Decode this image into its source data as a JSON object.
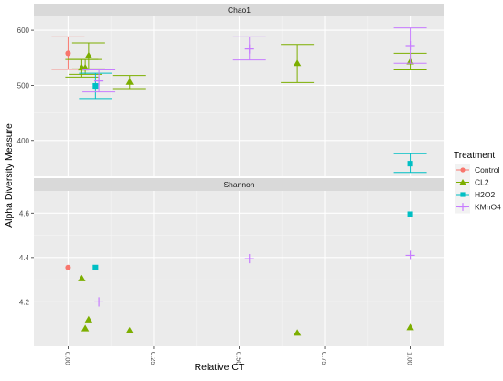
{
  "chart_data": {
    "type": "scatter",
    "xlabel": "Relative CT",
    "ylabel": "Alpha Diversity Measure",
    "x_ticks": [
      "0.00",
      "0.25",
      "0.50",
      "0.75",
      "1.00"
    ],
    "x_range": [
      -0.1,
      1.1
    ],
    "legend": {
      "title": "Treatment",
      "position": "right",
      "items": [
        {
          "name": "Control",
          "color": "#F8766D",
          "shape": "circle"
        },
        {
          "name": "CL2",
          "color": "#7CAE00",
          "shape": "triangle"
        },
        {
          "name": "H2O2",
          "color": "#00BFC4",
          "shape": "square"
        },
        {
          "name": "KMnO4",
          "color": "#C77CFF",
          "shape": "plus"
        }
      ]
    },
    "panels": [
      {
        "title": "Chao1",
        "ylim": [
          335,
          625
        ],
        "y_ticks": [
          400,
          500,
          600
        ],
        "points": [
          {
            "series": "Control",
            "x": 0.0,
            "y": 558,
            "ymin": 529,
            "ymax": 588
          },
          {
            "series": "CL2",
            "x": 0.04,
            "y": 532,
            "ymin": 515,
            "ymax": 547
          },
          {
            "series": "CL2",
            "x": 0.05,
            "y": 532,
            "ymin": 520,
            "ymax": 547
          },
          {
            "series": "CL2",
            "x": 0.06,
            "y": 554,
            "ymin": 530,
            "ymax": 577
          },
          {
            "series": "H2O2",
            "x": 0.08,
            "y": 499,
            "ymin": 476,
            "ymax": 522
          },
          {
            "series": "KMnO4",
            "x": 0.09,
            "y": 508,
            "ymin": 488,
            "ymax": 528
          },
          {
            "series": "CL2",
            "x": 0.18,
            "y": 506,
            "ymin": 494,
            "ymax": 518
          },
          {
            "series": "KMnO4",
            "x": 0.53,
            "y": 566,
            "ymin": 546,
            "ymax": 588
          },
          {
            "series": "CL2",
            "x": 0.67,
            "y": 540,
            "ymin": 505,
            "ymax": 574
          },
          {
            "series": "H2O2",
            "x": 1.0,
            "y": 358,
            "ymin": 342,
            "ymax": 376
          },
          {
            "series": "CL2",
            "x": 1.0,
            "y": 543,
            "ymin": 528,
            "ymax": 558
          },
          {
            "series": "KMnO4",
            "x": 1.0,
            "y": 572,
            "ymin": 540,
            "ymax": 604
          }
        ]
      },
      {
        "title": "Shannon",
        "ylim": [
          4.0,
          4.7
        ],
        "y_ticks": [
          4.2,
          4.4,
          4.6
        ],
        "points": [
          {
            "series": "Control",
            "x": 0.0,
            "y": 4.355
          },
          {
            "series": "CL2",
            "x": 0.04,
            "y": 4.305
          },
          {
            "series": "CL2",
            "x": 0.05,
            "y": 4.08
          },
          {
            "series": "CL2",
            "x": 0.06,
            "y": 4.12
          },
          {
            "series": "H2O2",
            "x": 0.08,
            "y": 4.355
          },
          {
            "series": "KMnO4",
            "x": 0.09,
            "y": 4.2
          },
          {
            "series": "CL2",
            "x": 0.18,
            "y": 4.07
          },
          {
            "series": "KMnO4",
            "x": 0.53,
            "y": 4.395
          },
          {
            "series": "CL2",
            "x": 0.67,
            "y": 4.06
          },
          {
            "series": "H2O2",
            "x": 1.0,
            "y": 4.595
          },
          {
            "series": "CL2",
            "x": 1.0,
            "y": 4.085
          },
          {
            "series": "KMnO4",
            "x": 1.0,
            "y": 4.41
          }
        ]
      }
    ]
  }
}
